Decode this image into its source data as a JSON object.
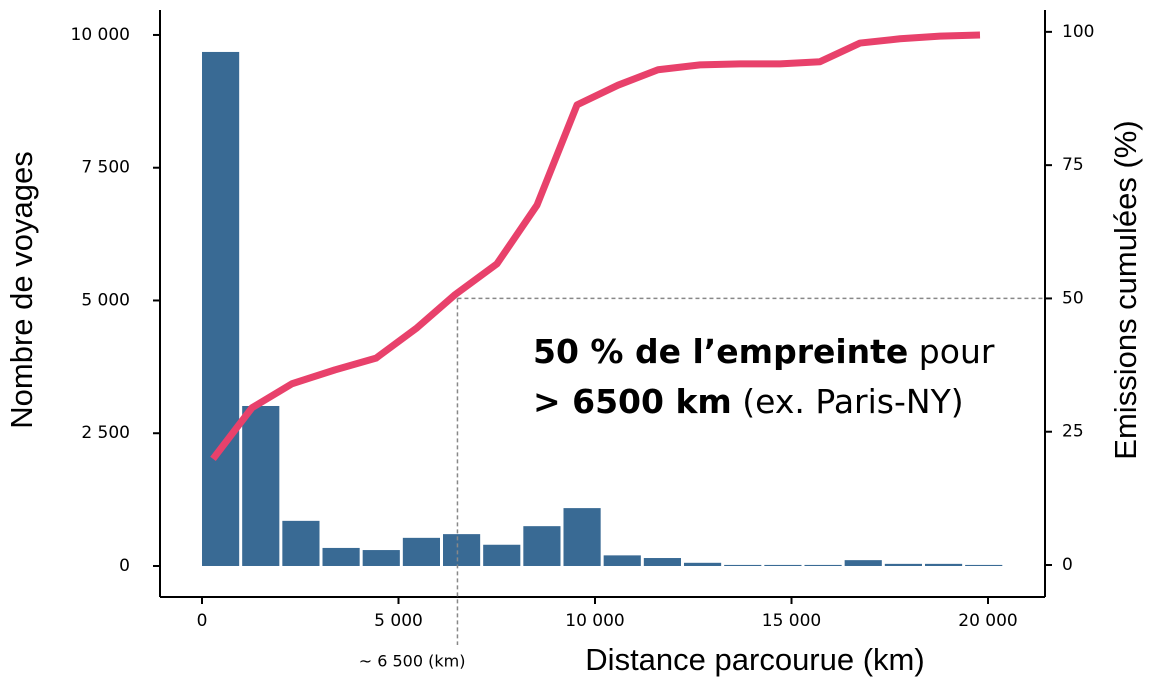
{
  "chart_data": {
    "type": "histogram",
    "x_label": "Distance parcourue (km)",
    "y_label": "Nombre de voyages",
    "y2_label": "Emissions cumulées (%)",
    "bins": [
      0,
      1022,
      2044,
      3066,
      4088,
      5110,
      6132,
      7154,
      8176,
      9198,
      10220,
      11242,
      12264,
      13286,
      14308,
      15330,
      16352,
      17374,
      18396,
      19418,
      20440
    ],
    "counts": [
      9680,
      3013,
      850,
      340,
      300,
      530,
      600,
      400,
      750,
      1090,
      200,
      150,
      60,
      20,
      20,
      20,
      110,
      40,
      40,
      20
    ],
    "color": "#396a94",
    "line": {
      "axis": "y2",
      "color": "#e8416b",
      "x": [
        280,
        1272,
        2290,
        3384,
        4427,
        5471,
        6438,
        7506,
        8524,
        9542,
        10585,
        11603,
        12672,
        13690,
        14707,
        15725,
        16743,
        17761,
        18779,
        19796
      ],
      "values": [
        19.9,
        29.5,
        34,
        36.6,
        38.8,
        44.5,
        50.7,
        56.5,
        67.5,
        86.3,
        90,
        92.9,
        93.8,
        94,
        94,
        94.4,
        97.9,
        98.7,
        99.2,
        99.4
      ]
    },
    "xlim": [
      -1069,
      21450
    ],
    "ylim": [
      -584,
      10470
    ],
    "y2lim": [
      -6,
      104.1
    ],
    "xticks": [
      0,
      {
        "value": 5000,
        "label": "5 000"
      },
      {
        "value": 10000,
        "label": "10 000"
      },
      {
        "value": 15000,
        "label": "15 000"
      },
      {
        "value": 20000,
        "label": "20 000"
      }
    ],
    "yticks": [
      0,
      {
        "value": 2500,
        "label": "2 500"
      },
      {
        "value": 5000,
        "label": "5 000"
      },
      {
        "value": 7500,
        "label": "7 500"
      },
      {
        "value": 10000,
        "label": "10 000"
      }
    ],
    "y2ticks": [
      0,
      25,
      50,
      75,
      100
    ],
    "reference": {
      "x": 6500,
      "x_label": "~ 6 500 (km)",
      "y2": 50
    },
    "annotation": {
      "line1_bold": "50 % de l’empreinte",
      "line1_rest": " pour",
      "line2_bold": "> 6500 km",
      "line2_rest": " (ex. Paris-NY)"
    }
  }
}
